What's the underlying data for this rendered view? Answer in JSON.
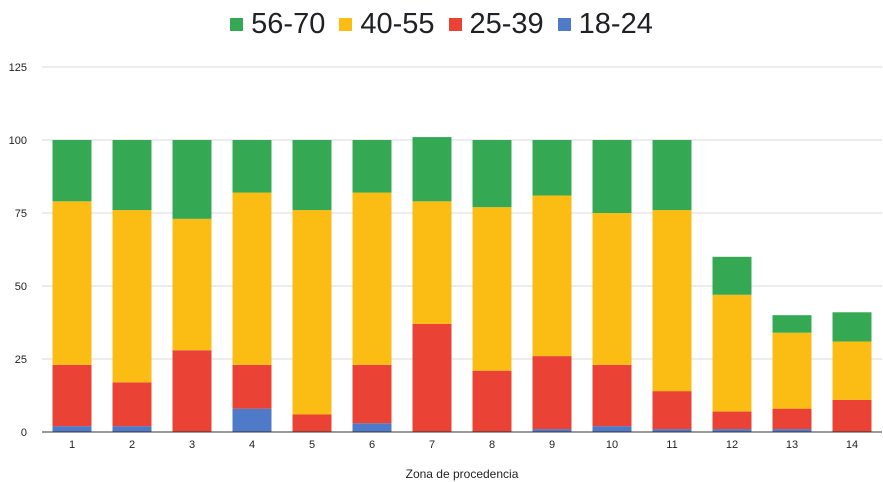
{
  "chart_data": {
    "type": "bar",
    "stacked": true,
    "title": "",
    "xlabel": "Zona de procedencia",
    "ylabel": "",
    "ylim": [
      0,
      125
    ],
    "yticks": [
      0,
      25,
      50,
      75,
      100,
      125
    ],
    "grid": true,
    "legend_position": "top",
    "categories": [
      "1",
      "2",
      "3",
      "4",
      "5",
      "6",
      "7",
      "8",
      "9",
      "10",
      "11",
      "12",
      "13",
      "14"
    ],
    "series": [
      {
        "name": "18-24",
        "color": "#4e7ac7",
        "values": [
          2,
          2,
          0,
          8,
          0,
          3,
          0,
          0,
          1,
          2,
          1,
          1,
          1,
          0
        ]
      },
      {
        "name": "25-39",
        "color": "#ea4335",
        "values": [
          21,
          15,
          28,
          15,
          6,
          20,
          37,
          21,
          25,
          21,
          13,
          6,
          7,
          11
        ]
      },
      {
        "name": "40-55",
        "color": "#fbbc14",
        "values": [
          56,
          59,
          45,
          59,
          70,
          59,
          42,
          56,
          55,
          52,
          62,
          40,
          26,
          20
        ]
      },
      {
        "name": "56-70",
        "color": "#34a853",
        "values": [
          21,
          24,
          27,
          18,
          24,
          18,
          22,
          23,
          19,
          25,
          24,
          13,
          6,
          10
        ]
      }
    ],
    "legend_order": [
      "56-70",
      "40-55",
      "25-39",
      "18-24"
    ]
  }
}
